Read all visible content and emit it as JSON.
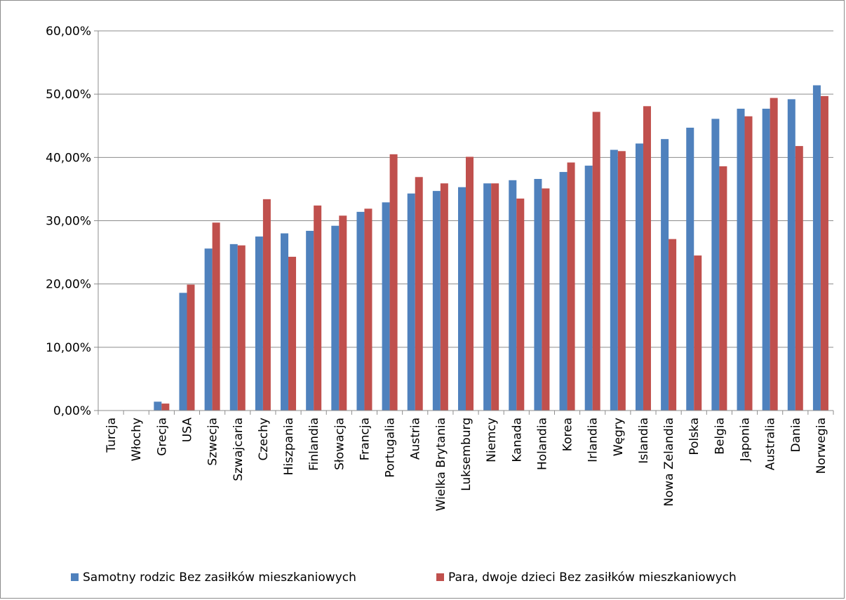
{
  "chart_data": {
    "type": "bar",
    "categories": [
      "Turcja",
      "Włochy",
      "Grecja",
      "USA",
      "Szwecja",
      "Szwajcaria",
      "Czechy",
      "Hiszpania",
      "Finlandia",
      "Słowacja",
      "Francja",
      "Portugalia",
      "Austria",
      "Wielka Brytania",
      "Luksemburg",
      "Niemcy",
      "Kanada",
      "Holandia",
      "Korea",
      "Irlandia",
      "Węgry",
      "Islandia",
      "Nowa Zelandia",
      "Polska",
      "Belgia",
      "Japonia",
      "Australia",
      "Dania",
      "Norwegia"
    ],
    "series": [
      {
        "name": "Samotny rodzic Bez zasiłków mieszkaniowych",
        "color": "#4f81bd",
        "values": [
          0,
          0,
          1.4,
          18.6,
          25.6,
          26.3,
          27.5,
          28.0,
          28.4,
          29.2,
          31.4,
          32.9,
          34.3,
          34.7,
          35.3,
          35.9,
          36.4,
          36.6,
          37.7,
          38.7,
          41.2,
          42.2,
          42.9,
          44.7,
          46.1,
          47.7,
          47.7,
          49.2,
          51.4
        ]
      },
      {
        "name": "Para, dwoje dzieci Bez zasiłków mieszkaniowych",
        "color": "#c0504d",
        "values": [
          0,
          0,
          1.1,
          19.9,
          29.7,
          26.1,
          33.4,
          24.3,
          32.4,
          30.8,
          31.9,
          40.5,
          36.9,
          35.9,
          40.1,
          35.9,
          33.5,
          35.1,
          39.2,
          47.2,
          41.0,
          48.1,
          27.1,
          24.5,
          38.6,
          46.5,
          49.4,
          41.8,
          49.7
        ]
      }
    ],
    "y_ticks": [
      "0,00%",
      "10,00%",
      "20,00%",
      "30,00%",
      "40,00%",
      "50,00%",
      "60,00%"
    ],
    "ylim": [
      0,
      60
    ],
    "grid": true,
    "legend_position": "bottom"
  }
}
